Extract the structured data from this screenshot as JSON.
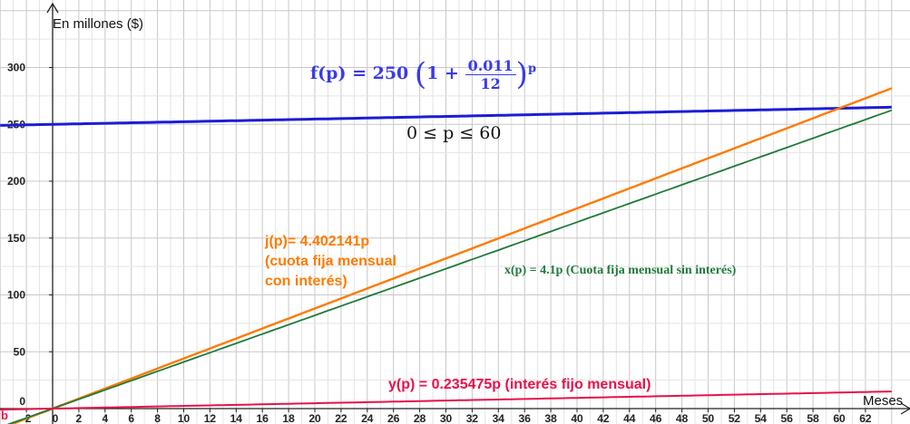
{
  "chart_data": {
    "type": "line",
    "x_axis_label": "Meses",
    "y_axis_label": "En millones ($)",
    "xlim": [
      -3.5,
      62.5
    ],
    "ylim": [
      -20,
      345
    ],
    "x_ticks": [
      -2,
      0,
      2,
      4,
      6,
      8,
      10,
      12,
      14,
      16,
      18,
      20,
      22,
      24,
      26,
      28,
      30,
      32,
      34,
      36,
      38,
      40,
      42,
      44,
      46,
      48,
      50,
      52,
      54,
      56,
      58,
      60,
      62
    ],
    "x_tick_labels": [
      "-2",
      "0",
      "2",
      "4",
      "6",
      "8",
      "10",
      "12",
      "14",
      "16",
      "18",
      "20",
      "22",
      "24",
      "26",
      "28",
      "30",
      "32",
      "34",
      "36",
      "38",
      "40",
      "42",
      "44",
      "46",
      "48",
      "50",
      "52",
      "54",
      "56",
      "58",
      "60",
      "62"
    ],
    "y_ticks": [
      0,
      50,
      100,
      150,
      200,
      250,
      300
    ],
    "y_tick_labels": [
      "0",
      "50",
      "100",
      "150",
      "200",
      "250",
      "300"
    ],
    "grid": true,
    "series": [
      {
        "key": "f",
        "color": "#1c1cd6",
        "kind": "exp",
        "base": 250,
        "rate": 0.011,
        "periods": 12
      },
      {
        "key": "j",
        "color": "#ff7a00",
        "kind": "linear",
        "slope": 4.402141
      },
      {
        "key": "x",
        "color": "#1f7a3a",
        "kind": "linear",
        "slope": 4.1
      },
      {
        "key": "y",
        "color": "#e8114a",
        "kind": "linear",
        "slope": 0.235475
      }
    ],
    "annotations": {
      "f_prefix": "f(p)",
      "f_eq": "= 250",
      "f_one": "1 +",
      "f_num": "0.011",
      "f_den": "12",
      "f_exp": "p",
      "domain": "0 ≤ p ≤ 60",
      "j_line1": "j(p)= 4.402141p",
      "j_line2": "(cuota fija mensual",
      "j_line3": "con interés)",
      "x_label": "x(p) = 4.1p (Cuota fija mensual sin interés)",
      "y_label": "y(p) = 0.235475p  (interés fijo mensual)",
      "corner": "b"
    }
  }
}
